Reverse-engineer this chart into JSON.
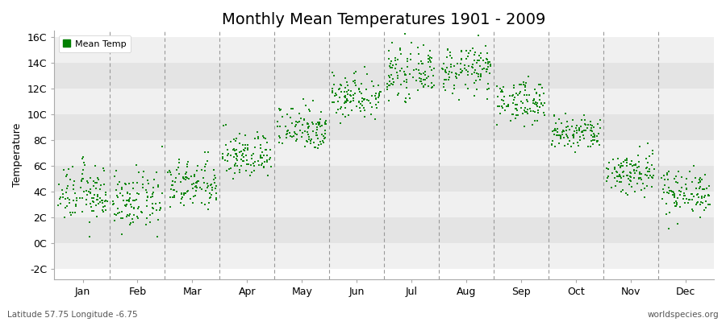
{
  "title": "Monthly Mean Temperatures 1901 - 2009",
  "ylabel": "Temperature",
  "xlabel_labels": [
    "Jan",
    "Feb",
    "Mar",
    "Apr",
    "May",
    "Jun",
    "Jul",
    "Aug",
    "Sep",
    "Oct",
    "Nov",
    "Dec"
  ],
  "ytick_labels": [
    "-2C",
    "0C",
    "2C",
    "4C",
    "6C",
    "8C",
    "10C",
    "12C",
    "14C",
    "16C"
  ],
  "ytick_values": [
    -2,
    0,
    2,
    4,
    6,
    8,
    10,
    12,
    14,
    16
  ],
  "ylim": [
    -2.8,
    16.5
  ],
  "dot_color": "#008000",
  "band_light": "#f0f0f0",
  "band_dark": "#e4e4e4",
  "dashed_color": "#999999",
  "title_fontsize": 14,
  "axis_fontsize": 9,
  "tick_fontsize": 9,
  "legend_label": "Mean Temp",
  "footer_left": "Latitude 57.75 Longitude -6.75",
  "footer_right": "worldspecies.org",
  "n_years": 109,
  "monthly_means": [
    3.8,
    3.2,
    4.5,
    6.8,
    9.0,
    11.5,
    13.2,
    13.5,
    11.0,
    8.5,
    5.5,
    4.0
  ],
  "monthly_stds": [
    1.1,
    1.1,
    1.0,
    0.9,
    0.9,
    0.9,
    0.9,
    0.9,
    0.8,
    0.7,
    0.9,
    0.9
  ]
}
